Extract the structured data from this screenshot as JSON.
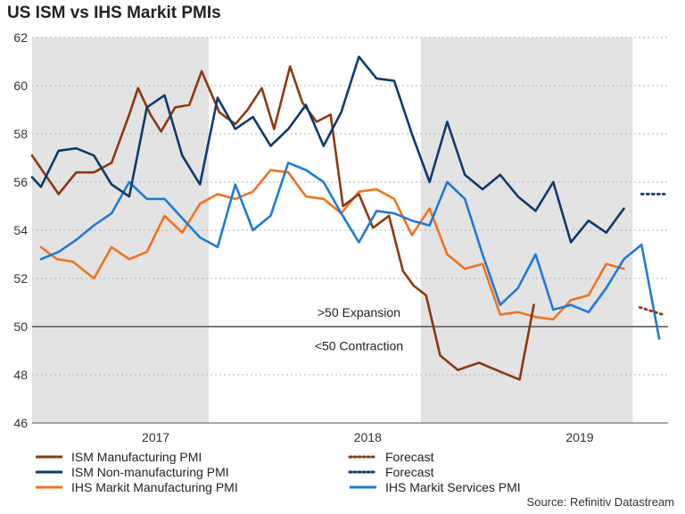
{
  "chart_data": {
    "type": "line",
    "title": "US ISM vs IHS Markit PMIs",
    "source": "Source: Refinitiv Datastream",
    "ylim": [
      46,
      62
    ],
    "yticks": [
      46,
      48,
      50,
      52,
      54,
      56,
      58,
      60,
      62
    ],
    "x_start": "2016-09",
    "x_end": "2019-10",
    "year_labels": [
      {
        "label": "2017",
        "position": 7
      },
      {
        "label": "2018",
        "position": 19
      },
      {
        "label": "2019",
        "position": 31
      }
    ],
    "shaded_periods": [
      [
        0,
        10
      ],
      [
        22,
        34
      ]
    ],
    "reference_line": 50,
    "annotations": [
      {
        "text": ">50 Expansion",
        "x": 18.5,
        "y": 50.6
      },
      {
        "text": "<50 Contraction",
        "x": 18.5,
        "y": 49.2
      }
    ],
    "series": [
      {
        "name": "ISM Manufacturing PMI",
        "color": "#8b3a0f",
        "x": [
          0,
          1.5,
          2.5,
          3.5,
          4.5,
          5.5,
          6,
          6.7,
          7.3,
          8.1,
          8.9,
          9.6,
          10.6,
          11.5,
          12.2,
          13,
          13.7,
          14.6,
          15.3,
          16.1,
          16.9,
          17.6,
          18.5,
          19.3,
          20.2,
          21,
          21.6,
          22.3,
          23.1,
          24.1,
          25.3,
          26.6,
          27.6,
          28.4,
          29.2,
          30.5,
          31.1,
          32.2,
          33.2
        ],
        "values": [
          57.1,
          55.5,
          56.4,
          56.4,
          56.8,
          58.8,
          59.9,
          58.8,
          58.1,
          59.1,
          59.2,
          60.6,
          58.9,
          58.4,
          59,
          59.9,
          58.2,
          60.8,
          59.3,
          58.5,
          58.8,
          55,
          55.5,
          54.1,
          54.6,
          52.3,
          51.7,
          51.3,
          48.8,
          48.2,
          48.5,
          48.1,
          47.8,
          50.9,
          null,
          null,
          null,
          null,
          null
        ]
      },
      {
        "name": "ISM Non-manufacturing PMI",
        "color": "#0e3a6e",
        "x": [
          0,
          0.5,
          1.5,
          2.5,
          3.5,
          4.5,
          5.5,
          6.5,
          7.5,
          8.5,
          9.5,
          10.5,
          11.5,
          12.5,
          13.5,
          14.5,
          15.5,
          16.5,
          17.5,
          18.5,
          19.5,
          20.5,
          21.5,
          22.5,
          23.5,
          24.5,
          25.5,
          26.5,
          27.5,
          28.5,
          29.5,
          30.5,
          31.5,
          32.5,
          33.5
        ],
        "values": [
          56.2,
          55.8,
          57.3,
          57.4,
          57.1,
          55.9,
          55.4,
          59.1,
          59.6,
          57.1,
          55.9,
          59.5,
          58.2,
          58.7,
          57.5,
          58.2,
          59.2,
          57.5,
          58.9,
          61.2,
          60.3,
          60.2,
          58,
          56,
          58.5,
          56.3,
          55.7,
          56.3,
          55.4,
          54.8,
          56,
          53.5,
          54.4,
          53.9,
          54.9
        ]
      },
      {
        "name": "IHS Markit Manufacturing PMI",
        "color": "#f07320",
        "x": [
          0.5,
          1.4,
          2.3,
          3.5,
          4.5,
          5.5,
          6.5,
          7.5,
          8.5,
          9.5,
          10.5,
          11.5,
          12.5,
          13.5,
          14.5,
          15.5,
          16.5,
          17.5,
          18.5,
          19.5,
          20.5,
          21.5,
          22.5,
          23.5,
          24.5,
          25.5,
          26.5,
          27.5,
          28.5,
          29.5,
          30.5,
          31.5,
          32.5,
          33.5
        ],
        "values": [
          53.3,
          52.8,
          52.7,
          52,
          53.3,
          52.8,
          53.1,
          54.6,
          53.9,
          55.1,
          55.5,
          55.3,
          55.6,
          56.5,
          56.4,
          55.4,
          55.3,
          54.7,
          55.6,
          55.7,
          55.3,
          53.8,
          54.9,
          53,
          52.4,
          52.6,
          50.5,
          50.6,
          50.4,
          50.3,
          51.1,
          51.3,
          52.6,
          52.4
        ]
      },
      {
        "name": "IHS Markit Services PMI",
        "color": "#1f7ad6",
        "x": [
          0.5,
          1.5,
          2.5,
          3.5,
          4.5,
          5.5,
          6.5,
          7.5,
          8.5,
          9.5,
          10.5,
          11.5,
          12.5,
          13.5,
          14.5,
          15.5,
          16.5,
          17.5,
          18.5,
          19.5,
          20.5,
          21.5,
          22.5,
          23.5,
          24.5,
          25.5,
          26.5,
          27.5,
          28.5,
          29.5,
          30.5,
          31.5,
          32.5,
          33.5,
          34.5,
          35.5
        ],
        "values": [
          52.8,
          53.1,
          53.6,
          54.2,
          54.7,
          56,
          55.3,
          55.3,
          54.5,
          53.7,
          53.3,
          55.9,
          54,
          54.6,
          56.8,
          56.5,
          56,
          54.7,
          53.5,
          54.8,
          54.7,
          54.4,
          54.2,
          56,
          55.3,
          53,
          50.9,
          51.6,
          53,
          50.7,
          50.9,
          50.6,
          51.6,
          52.8,
          53.4,
          49.5
        ]
      }
    ],
    "forecasts": [
      {
        "name": "Forecast",
        "color": "#8b3a0f",
        "x": [
          34.4,
          35.7
        ],
        "values": [
          50.8,
          50.5
        ]
      },
      {
        "name": "Forecast",
        "color": "#0e3a6e",
        "x": [
          34.5,
          35.8
        ],
        "values": [
          55.5,
          55.5
        ]
      }
    ],
    "legend": [
      {
        "label": "ISM Manufacturing PMI",
        "color": "#8b3a0f",
        "style": "solid"
      },
      {
        "label": "Forecast",
        "color": "#8b3a0f",
        "style": "dotted"
      },
      {
        "label": "ISM Non-manufacturing PMI",
        "color": "#0e3a6e",
        "style": "solid"
      },
      {
        "label": "Forecast",
        "color": "#0e3a6e",
        "style": "dotted"
      },
      {
        "label": "IHS Markit Manufacturing PMI",
        "color": "#f07320",
        "style": "solid"
      },
      {
        "label": "IHS Markit Services PMI",
        "color": "#1f7ad6",
        "style": "solid"
      }
    ]
  }
}
